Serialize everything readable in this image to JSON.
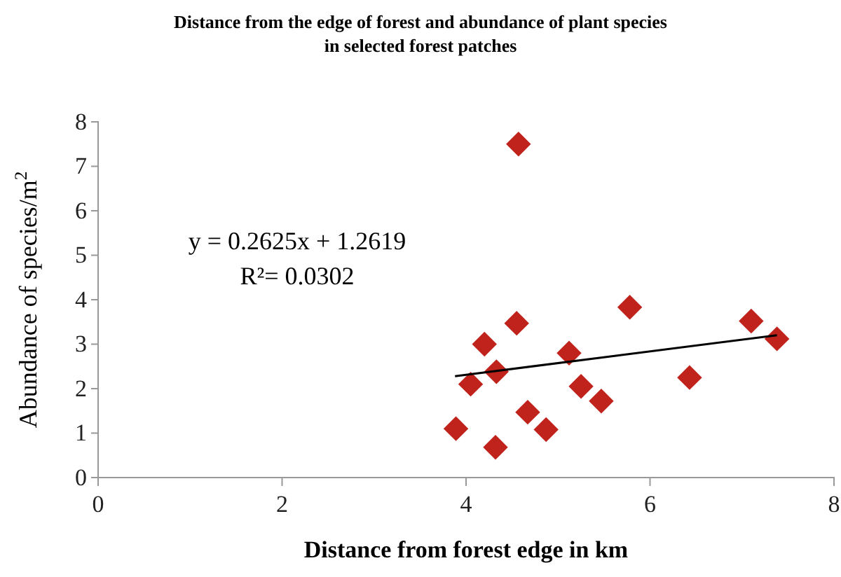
{
  "chart_data": {
    "type": "scatter",
    "title": "Distance from the edge of forest and abundance of plant species\nin selected forest patches",
    "xlabel": "Distance from forest edge in km",
    "ylabel": "Abundance of species/m$^{2}$",
    "xlim": [
      0,
      8
    ],
    "xticks": [
      0,
      2,
      4,
      6,
      8
    ],
    "ylim": [
      0,
      8
    ],
    "yticks": [
      0,
      1,
      2,
      3,
      4,
      5,
      6,
      7,
      8
    ],
    "grid": false,
    "marker": "diamond",
    "annotations": [
      "y = 0.2625x + 1.2619\nR²= 0.0302"
    ],
    "series": [
      {
        "color": "#c0231b",
        "x": [
          3.89,
          4.05,
          4.2,
          4.32,
          4.33,
          4.55,
          4.57,
          4.67,
          4.87,
          5.12,
          5.25,
          5.47,
          5.78,
          6.43,
          7.1,
          7.38
        ],
        "values": [
          1.1,
          2.1,
          3.0,
          0.68,
          2.38,
          3.47,
          7.5,
          1.47,
          1.08,
          2.8,
          2.05,
          1.72,
          3.83,
          2.25,
          3.52,
          3.12
        ]
      },
      {
        "type": "line",
        "color": "#000000",
        "marker": "none",
        "line_style": "solid",
        "x": [
          3.88,
          7.38
        ],
        "values": [
          2.28,
          3.2
        ]
      }
    ]
  }
}
